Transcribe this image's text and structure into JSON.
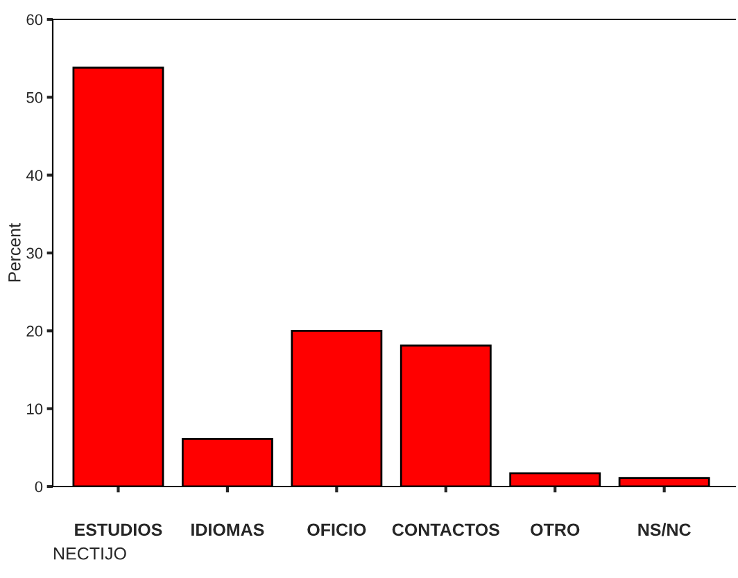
{
  "chart_data": {
    "type": "bar",
    "categories": [
      "ESTUDIOS",
      "IDIOMAS",
      "OFICIO",
      "CONTACTOS",
      "OTRO",
      "NS/NC"
    ],
    "values": [
      53.8,
      6.1,
      20.0,
      18.1,
      1.7,
      1.1
    ],
    "color": "#ff0000",
    "xlabel": "NECTIJO",
    "ylabel": "Percent",
    "ylim": [
      0,
      60
    ],
    "yticks": [
      0,
      10,
      20,
      30,
      40,
      50,
      60
    ],
    "grid": false
  }
}
